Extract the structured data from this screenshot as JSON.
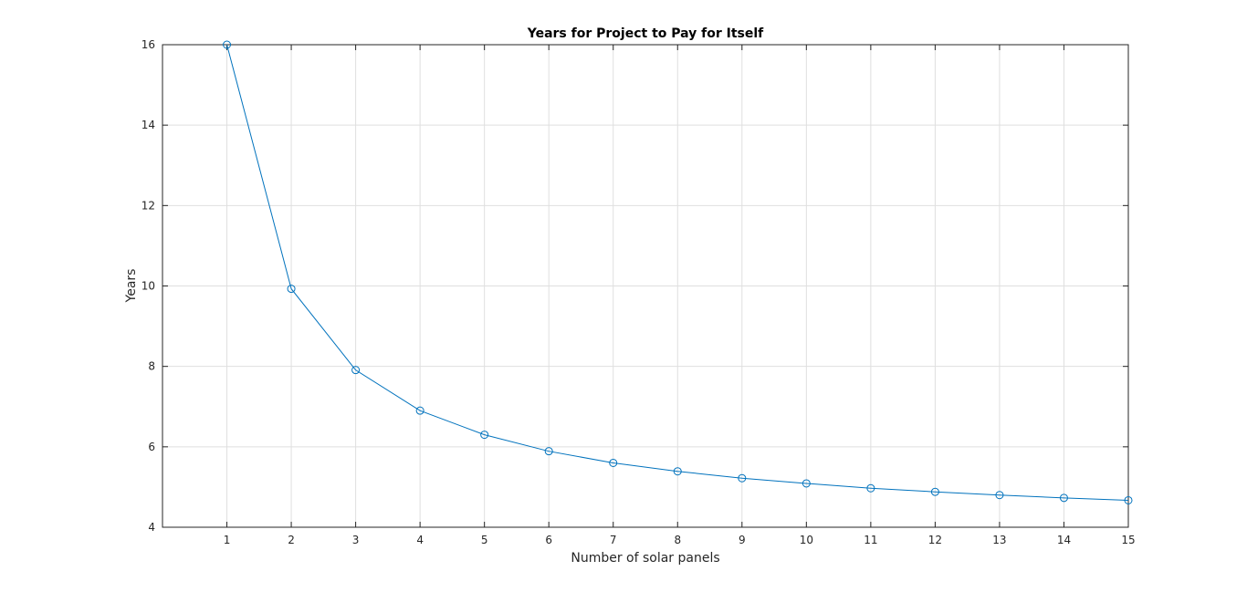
{
  "chart_data": {
    "type": "line",
    "title": "Years for Project to Pay for Itself",
    "xlabel": "Number of solar panels",
    "ylabel": "Years",
    "xlim": [
      0,
      15
    ],
    "ylim": [
      4,
      16
    ],
    "xticks": [
      1,
      2,
      3,
      4,
      5,
      6,
      7,
      8,
      9,
      10,
      11,
      12,
      13,
      14,
      15
    ],
    "yticks": [
      4,
      6,
      8,
      10,
      12,
      14,
      16
    ],
    "grid": true,
    "marker": "circle",
    "line_color": "#0072BD",
    "series": [
      {
        "x": [
          1,
          2,
          3,
          4,
          5,
          6,
          7,
          8,
          9,
          10,
          11,
          12,
          13,
          14,
          15
        ],
        "values": [
          16.0,
          9.93,
          7.91,
          6.9,
          6.3,
          5.89,
          5.6,
          5.39,
          5.22,
          5.09,
          4.97,
          4.88,
          4.8,
          4.73,
          4.67
        ]
      }
    ]
  }
}
